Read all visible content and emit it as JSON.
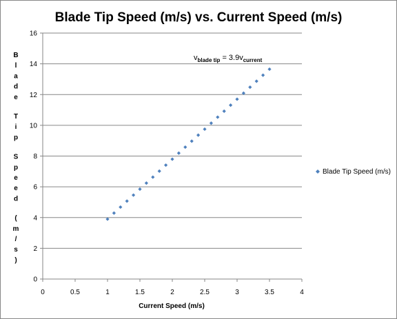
{
  "chart_data": {
    "type": "scatter",
    "title": "Blade Tip Speed (m/s) vs. Current Speed (m/s)",
    "xlabel": "Current Speed (m/s)",
    "ylabel": "Blade Tip Speed (m/s)",
    "xlim": [
      0,
      4
    ],
    "ylim": [
      0,
      16
    ],
    "xticks": [
      "0",
      "0.5",
      "1",
      "1.5",
      "2",
      "2.5",
      "3",
      "3.5",
      "4"
    ],
    "yticks": [
      "0",
      "2",
      "4",
      "6",
      "8",
      "10",
      "12",
      "14",
      "16"
    ],
    "grid": "horizontal",
    "legend": "right",
    "series": [
      {
        "name": "Blade Tip Speed (m/s)",
        "color": "#4f81bd",
        "x": [
          1.0,
          1.1,
          1.2,
          1.3,
          1.4,
          1.5,
          1.6,
          1.7,
          1.8,
          1.9,
          2.0,
          2.1,
          2.2,
          2.3,
          2.4,
          2.5,
          2.6,
          2.7,
          2.8,
          2.9,
          3.0,
          3.1,
          3.2,
          3.3,
          3.4,
          3.5
        ],
        "y": [
          3.9,
          4.29,
          4.68,
          5.07,
          5.46,
          5.85,
          6.24,
          6.63,
          7.02,
          7.41,
          7.8,
          8.19,
          8.58,
          8.97,
          9.36,
          9.75,
          10.14,
          10.53,
          10.92,
          11.31,
          11.7,
          12.09,
          12.48,
          12.87,
          13.26,
          13.65
        ]
      }
    ],
    "annotation": {
      "prefix": "v",
      "prefix_sub": "blade tip",
      "middle": " = 3.9v",
      "suffix_sub": "current"
    }
  }
}
